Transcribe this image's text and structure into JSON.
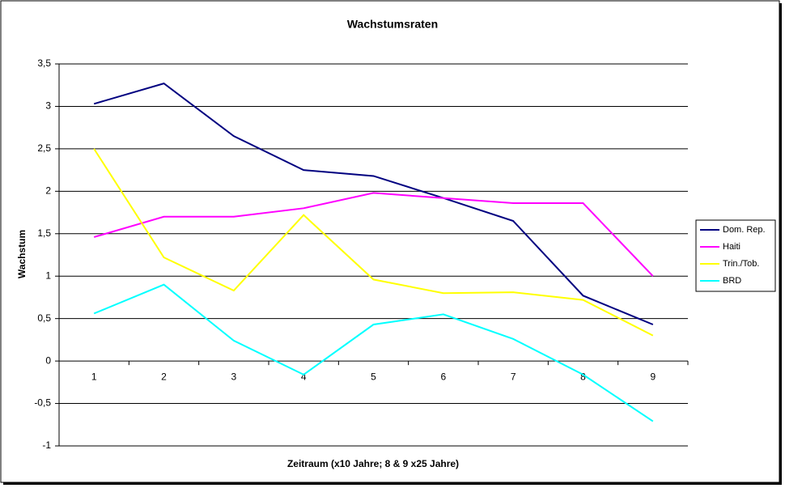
{
  "chart_data": {
    "type": "line",
    "title": "Wachstumsraten",
    "x_label": "Zeitraum (x10 Jahre; 8 & 9 x25 Jahre)",
    "y_label": "Wachstum",
    "categories": [
      "1",
      "2",
      "3",
      "4",
      "5",
      "6",
      "7",
      "8",
      "9"
    ],
    "series": [
      {
        "name": "Dom. Rep.",
        "color": "#000080",
        "values": [
          3.03,
          3.27,
          2.65,
          2.25,
          2.18,
          1.92,
          1.65,
          0.77,
          0.43
        ]
      },
      {
        "name": "Haiti",
        "color": "#ff00ff",
        "values": [
          1.46,
          1.7,
          1.7,
          1.8,
          1.98,
          1.92,
          1.86,
          1.86,
          1.0
        ]
      },
      {
        "name": "Trin./Tob.",
        "color": "#ffff00",
        "values": [
          2.5,
          1.22,
          0.83,
          1.72,
          0.96,
          0.8,
          0.81,
          0.72,
          0.3
        ]
      },
      {
        "name": "BRD",
        "color": "#00ffff",
        "values": [
          0.56,
          0.9,
          0.24,
          -0.16,
          0.43,
          0.55,
          0.26,
          -0.16,
          -0.71
        ]
      }
    ],
    "ylim": [
      -1,
      3.5
    ],
    "yticks": [
      -1,
      {
        "value": -0.5,
        "label": "-0,5"
      },
      0,
      {
        "value": 0.5,
        "label": "0,5"
      },
      1,
      {
        "value": 1.5,
        "label": "1,5"
      },
      2,
      {
        "value": 2.5,
        "label": "2,5"
      },
      3,
      {
        "value": 3.5,
        "label": "3,5"
      }
    ],
    "grid": true,
    "legend": "right"
  }
}
